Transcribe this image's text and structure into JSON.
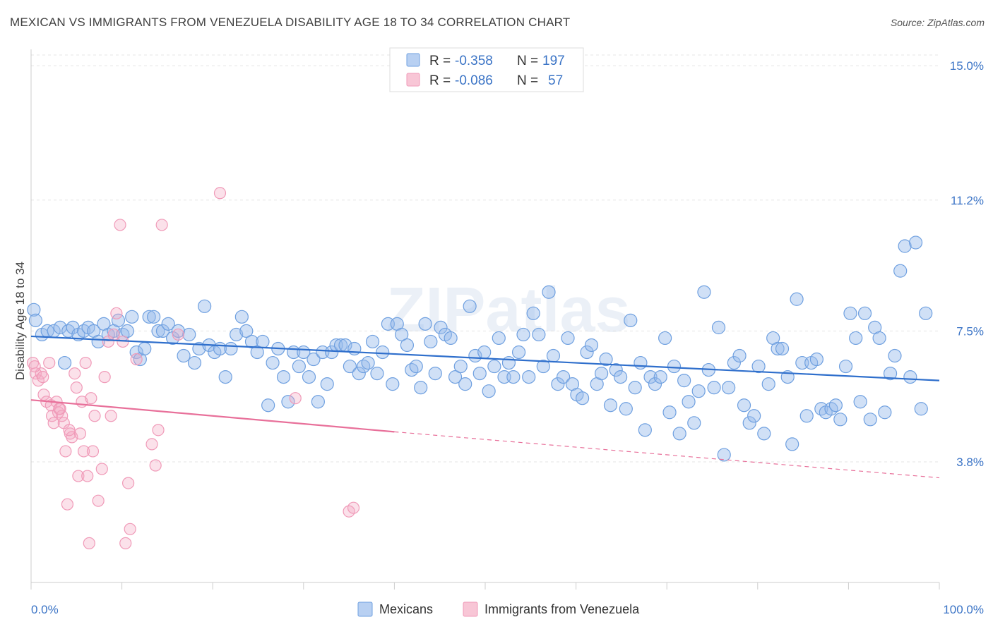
{
  "title": "MEXICAN VS IMMIGRANTS FROM VENEZUELA DISABILITY AGE 18 TO 34 CORRELATION CHART",
  "source": "Source: ZipAtlas.com",
  "watermark": "ZIPatlas",
  "colors": {
    "blue": "#6fa0e0",
    "blue_line": "#2f6fcc",
    "pink": "#f09ab8",
    "pink_line": "#e8709a",
    "tick_text": "#3b74c6"
  },
  "legend": {
    "rows": [
      {
        "r_label": "R =",
        "r_value": "-0.358",
        "n_label": "N =",
        "n_value": "197"
      },
      {
        "r_label": "R =",
        "r_value": "-0.086",
        "n_label": "N =",
        "n_value": "57"
      }
    ]
  },
  "bottom_legend": [
    "Mexicans",
    "Immigrants from Venezuela"
  ],
  "chart_data": {
    "type": "scatter",
    "xlabel": "",
    "ylabel": "Disability Age 18 to 34",
    "xlim": [
      0,
      100
    ],
    "ylim": [
      0,
      15.5
    ],
    "x_tick_labels": [
      "0.0%",
      "100.0%"
    ],
    "y_ticks": [
      {
        "value": 3.8,
        "label": "3.8%"
      },
      {
        "value": 7.5,
        "label": "7.5%"
      },
      {
        "value": 11.2,
        "label": "11.2%"
      },
      {
        "value": 15.0,
        "label": "15.0%"
      }
    ],
    "grid": "horizontal dashed",
    "legend_position": "top-center",
    "series": [
      {
        "name": "Mexicans",
        "trend": {
          "x": [
            0,
            100
          ],
          "y": [
            7.35,
            6.1
          ]
        },
        "points": [
          [
            0.3,
            8.1
          ],
          [
            0.5,
            7.8
          ],
          [
            1.2,
            7.4
          ],
          [
            1.8,
            7.5
          ],
          [
            2.5,
            7.5
          ],
          [
            3.2,
            7.6
          ],
          [
            3.7,
            6.6
          ],
          [
            4.1,
            7.5
          ],
          [
            4.6,
            7.6
          ],
          [
            5.2,
            7.4
          ],
          [
            5.8,
            7.5
          ],
          [
            6.3,
            7.6
          ],
          [
            6.9,
            7.5
          ],
          [
            7.4,
            7.2
          ],
          [
            8.0,
            7.7
          ],
          [
            8.5,
            7.4
          ],
          [
            9.1,
            7.5
          ],
          [
            9.6,
            7.8
          ],
          [
            10.1,
            7.4
          ],
          [
            10.6,
            7.5
          ],
          [
            11.1,
            7.9
          ],
          [
            11.6,
            6.9
          ],
          [
            12.0,
            6.7
          ],
          [
            12.5,
            7.0
          ],
          [
            13.0,
            7.9
          ],
          [
            13.5,
            7.9
          ],
          [
            14.0,
            7.5
          ],
          [
            14.5,
            7.5
          ],
          [
            15.1,
            7.7
          ],
          [
            15.6,
            7.3
          ],
          [
            16.2,
            7.5
          ],
          [
            16.8,
            6.8
          ],
          [
            17.4,
            7.4
          ],
          [
            18.0,
            6.6
          ],
          [
            18.5,
            7.0
          ],
          [
            19.1,
            8.2
          ],
          [
            19.6,
            7.1
          ],
          [
            20.2,
            6.9
          ],
          [
            20.8,
            7.0
          ],
          [
            21.4,
            6.2
          ],
          [
            22.0,
            7.0
          ],
          [
            22.6,
            7.4
          ],
          [
            23.2,
            7.9
          ],
          [
            23.7,
            7.5
          ],
          [
            24.3,
            7.2
          ],
          [
            24.9,
            6.9
          ],
          [
            25.5,
            7.2
          ],
          [
            26.1,
            5.4
          ],
          [
            26.6,
            6.6
          ],
          [
            27.2,
            7.0
          ],
          [
            27.8,
            6.2
          ],
          [
            28.3,
            5.5
          ],
          [
            28.9,
            6.9
          ],
          [
            29.5,
            6.5
          ],
          [
            30.0,
            6.9
          ],
          [
            30.6,
            6.2
          ],
          [
            31.1,
            6.7
          ],
          [
            31.6,
            5.5
          ],
          [
            32.1,
            6.9
          ],
          [
            32.6,
            6.0
          ],
          [
            33.1,
            6.9
          ],
          [
            33.6,
            7.1
          ],
          [
            34.1,
            7.1
          ],
          [
            34.6,
            7.1
          ],
          [
            35.1,
            6.5
          ],
          [
            35.6,
            7.0
          ],
          [
            36.1,
            6.3
          ],
          [
            36.6,
            6.5
          ],
          [
            37.1,
            6.6
          ],
          [
            37.6,
            7.2
          ],
          [
            38.1,
            6.3
          ],
          [
            38.7,
            6.9
          ],
          [
            39.3,
            7.7
          ],
          [
            39.8,
            6.0
          ],
          [
            40.3,
            7.7
          ],
          [
            40.8,
            7.4
          ],
          [
            41.4,
            7.1
          ],
          [
            41.9,
            6.4
          ],
          [
            42.4,
            6.5
          ],
          [
            42.9,
            5.9
          ],
          [
            43.4,
            7.7
          ],
          [
            44.0,
            7.2
          ],
          [
            44.5,
            6.3
          ],
          [
            45.1,
            7.6
          ],
          [
            45.6,
            7.4
          ],
          [
            46.2,
            7.3
          ],
          [
            46.7,
            6.2
          ],
          [
            47.3,
            6.5
          ],
          [
            47.8,
            6.0
          ],
          [
            48.3,
            8.2
          ],
          [
            48.9,
            6.8
          ],
          [
            49.4,
            6.3
          ],
          [
            49.9,
            6.9
          ],
          [
            50.4,
            5.8
          ],
          [
            51.0,
            6.5
          ],
          [
            51.5,
            7.3
          ],
          [
            52.1,
            6.2
          ],
          [
            52.6,
            6.6
          ],
          [
            53.1,
            6.2
          ],
          [
            53.7,
            6.9
          ],
          [
            54.2,
            7.4
          ],
          [
            54.8,
            6.2
          ],
          [
            55.3,
            8.0
          ],
          [
            55.9,
            7.4
          ],
          [
            56.4,
            6.5
          ],
          [
            57.0,
            8.6
          ],
          [
            57.5,
            6.8
          ],
          [
            58.0,
            6.0
          ],
          [
            58.6,
            6.2
          ],
          [
            59.1,
            7.3
          ],
          [
            59.6,
            6.0
          ],
          [
            60.1,
            5.7
          ],
          [
            60.7,
            5.6
          ],
          [
            61.2,
            6.9
          ],
          [
            61.7,
            7.1
          ],
          [
            62.3,
            6.0
          ],
          [
            62.8,
            6.3
          ],
          [
            63.3,
            6.7
          ],
          [
            63.8,
            5.4
          ],
          [
            64.4,
            6.4
          ],
          [
            64.9,
            6.2
          ],
          [
            65.5,
            5.3
          ],
          [
            66.0,
            7.8
          ],
          [
            66.5,
            5.9
          ],
          [
            67.1,
            6.6
          ],
          [
            67.6,
            4.7
          ],
          [
            68.2,
            6.2
          ],
          [
            68.7,
            6.0
          ],
          [
            69.3,
            6.2
          ],
          [
            69.8,
            7.3
          ],
          [
            70.3,
            5.2
          ],
          [
            70.8,
            6.5
          ],
          [
            71.4,
            4.6
          ],
          [
            71.9,
            6.1
          ],
          [
            72.4,
            5.5
          ],
          [
            73.0,
            4.9
          ],
          [
            73.5,
            5.8
          ],
          [
            74.1,
            8.6
          ],
          [
            74.6,
            6.4
          ],
          [
            75.2,
            5.9
          ],
          [
            75.7,
            7.6
          ],
          [
            76.3,
            4.0
          ],
          [
            76.8,
            5.9
          ],
          [
            77.4,
            6.6
          ],
          [
            78.0,
            6.8
          ],
          [
            78.5,
            5.4
          ],
          [
            79.1,
            4.9
          ],
          [
            79.6,
            5.1
          ],
          [
            80.1,
            6.5
          ],
          [
            80.7,
            4.6
          ],
          [
            81.2,
            6.0
          ],
          [
            81.7,
            7.3
          ],
          [
            82.2,
            7.0
          ],
          [
            82.7,
            7.0
          ],
          [
            83.3,
            6.2
          ],
          [
            83.8,
            4.3
          ],
          [
            84.3,
            8.4
          ],
          [
            84.9,
            6.6
          ],
          [
            85.4,
            5.1
          ],
          [
            85.9,
            6.6
          ],
          [
            86.5,
            6.7
          ],
          [
            87.0,
            5.3
          ],
          [
            87.5,
            5.2
          ],
          [
            88.1,
            5.3
          ],
          [
            88.6,
            5.4
          ],
          [
            89.1,
            5.0
          ],
          [
            89.7,
            6.5
          ],
          [
            90.2,
            8.0
          ],
          [
            90.8,
            7.3
          ],
          [
            91.3,
            5.5
          ],
          [
            91.8,
            8.0
          ],
          [
            92.4,
            5.0
          ],
          [
            92.9,
            7.6
          ],
          [
            93.4,
            7.3
          ],
          [
            94.0,
            5.2
          ],
          [
            94.6,
            6.3
          ],
          [
            95.1,
            6.8
          ],
          [
            95.7,
            9.2
          ],
          [
            96.2,
            9.9
          ],
          [
            96.8,
            6.2
          ],
          [
            97.4,
            10.0
          ],
          [
            98.0,
            5.3
          ],
          [
            98.5,
            8.0
          ]
        ]
      },
      {
        "name": "Immigrants from Venezuela",
        "trend": {
          "x": [
            0,
            40
          ],
          "y": [
            5.55,
            4.65
          ],
          "dashed_to": [
            100,
            3.35
          ]
        },
        "points": [
          [
            0.2,
            6.6
          ],
          [
            0.5,
            6.3
          ],
          [
            0.8,
            6.1
          ],
          [
            1.1,
            6.3
          ],
          [
            1.4,
            5.7
          ],
          [
            1.7,
            5.5
          ],
          [
            2.0,
            6.6
          ],
          [
            2.3,
            5.1
          ],
          [
            2.5,
            4.9
          ],
          [
            2.8,
            5.5
          ],
          [
            3.0,
            5.2
          ],
          [
            3.2,
            5.3
          ],
          [
            3.4,
            5.1
          ],
          [
            3.6,
            4.9
          ],
          [
            3.8,
            4.1
          ],
          [
            4.0,
            2.6
          ],
          [
            4.3,
            4.6
          ],
          [
            4.5,
            4.5
          ],
          [
            4.8,
            6.3
          ],
          [
            5.0,
            5.9
          ],
          [
            5.2,
            3.4
          ],
          [
            5.4,
            4.6
          ],
          [
            5.6,
            5.5
          ],
          [
            5.8,
            4.1
          ],
          [
            6.0,
            6.6
          ],
          [
            6.2,
            3.4
          ],
          [
            6.4,
            1.5
          ],
          [
            6.6,
            5.6
          ],
          [
            6.8,
            4.1
          ],
          [
            7.0,
            5.1
          ],
          [
            7.4,
            2.7
          ],
          [
            7.8,
            3.6
          ],
          [
            8.1,
            6.2
          ],
          [
            8.5,
            7.2
          ],
          [
            8.8,
            5.1
          ],
          [
            9.1,
            7.4
          ],
          [
            9.4,
            8.0
          ],
          [
            9.8,
            10.5
          ],
          [
            10.1,
            7.2
          ],
          [
            10.4,
            1.5
          ],
          [
            10.7,
            3.2
          ],
          [
            10.9,
            1.9
          ],
          [
            11.6,
            6.7
          ],
          [
            13.3,
            4.3
          ],
          [
            13.7,
            3.7
          ],
          [
            14.0,
            4.7
          ],
          [
            14.4,
            10.5
          ],
          [
            16.2,
            7.4
          ],
          [
            20.8,
            11.4
          ],
          [
            29.1,
            5.6
          ],
          [
            35.0,
            2.4
          ],
          [
            35.5,
            2.5
          ],
          [
            0.4,
            6.5
          ],
          [
            1.3,
            6.2
          ],
          [
            2.2,
            5.4
          ],
          [
            3.1,
            5.3
          ],
          [
            4.2,
            4.7
          ]
        ]
      }
    ]
  }
}
